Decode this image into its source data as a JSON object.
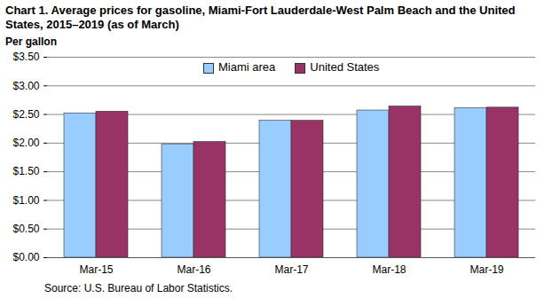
{
  "chart_data": {
    "type": "bar",
    "title": "Chart 1. Average prices for gasoline, Miami-Fort Lauderdale-West Palm Beach and the United States, 2015–2019 (as of March)",
    "y_label": "Per gallon",
    "source": "Source: U.S. Bureau of Labor Statistics.",
    "categories": [
      "Mar-15",
      "Mar-16",
      "Mar-17",
      "Mar-18",
      "Mar-19"
    ],
    "series": [
      {
        "name": "Miami area",
        "color": "#99ccff",
        "values": [
          2.52,
          1.98,
          2.39,
          2.57,
          2.61
        ]
      },
      {
        "name": "United States",
        "color": "#993366",
        "values": [
          2.55,
          2.02,
          2.39,
          2.64,
          2.62
        ]
      }
    ],
    "ylim": [
      0,
      3.5
    ],
    "yticks": [
      {
        "value": 0,
        "label": "$0.00"
      },
      {
        "value": 0.5,
        "label": "$0.50"
      },
      {
        "value": 1,
        "label": "$1.00"
      },
      {
        "value": 1.5,
        "label": "$1.50"
      },
      {
        "value": 2,
        "label": "$2.00"
      },
      {
        "value": 2.5,
        "label": "$2.50"
      },
      {
        "value": 3,
        "label": "$3.00"
      },
      {
        "value": 3.5,
        "label": "$3.50"
      }
    ],
    "grid": true,
    "legend": "top"
  }
}
